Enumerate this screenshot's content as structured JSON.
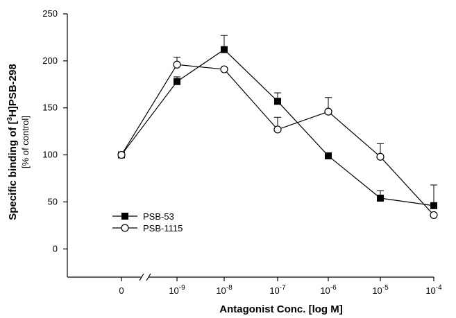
{
  "chart_data": {
    "type": "line",
    "xlabel": "Antagonist Conc. [log M]",
    "ylabel": "Specific binding of [³H]PSB-298",
    "ylabel_units": "[% of control]",
    "x_axis_break": true,
    "categories": [
      {
        "base": "0",
        "exp": ""
      },
      {
        "base": "10",
        "exp": "-9"
      },
      {
        "base": "10",
        "exp": "-8"
      },
      {
        "base": "10",
        "exp": "-7"
      },
      {
        "base": "10",
        "exp": "-6"
      },
      {
        "base": "10",
        "exp": "-5"
      },
      {
        "base": "10",
        "exp": "-4"
      }
    ],
    "ylim": [
      -30,
      250
    ],
    "yticks": [
      0,
      50,
      100,
      150,
      200,
      250
    ],
    "legend_position": "lower-left",
    "series": [
      {
        "name": "PSB-53",
        "marker": "filled-square",
        "values": [
          100,
          178,
          212,
          157,
          99,
          54,
          46
        ],
        "errors": [
          0,
          5,
          15,
          9,
          3,
          8,
          22
        ]
      },
      {
        "name": "PSB-1115",
        "marker": "open-circle",
        "values": [
          100,
          196,
          191,
          127,
          146,
          98,
          36
        ],
        "errors": [
          0,
          8,
          0,
          13,
          15,
          14,
          0
        ]
      }
    ]
  }
}
